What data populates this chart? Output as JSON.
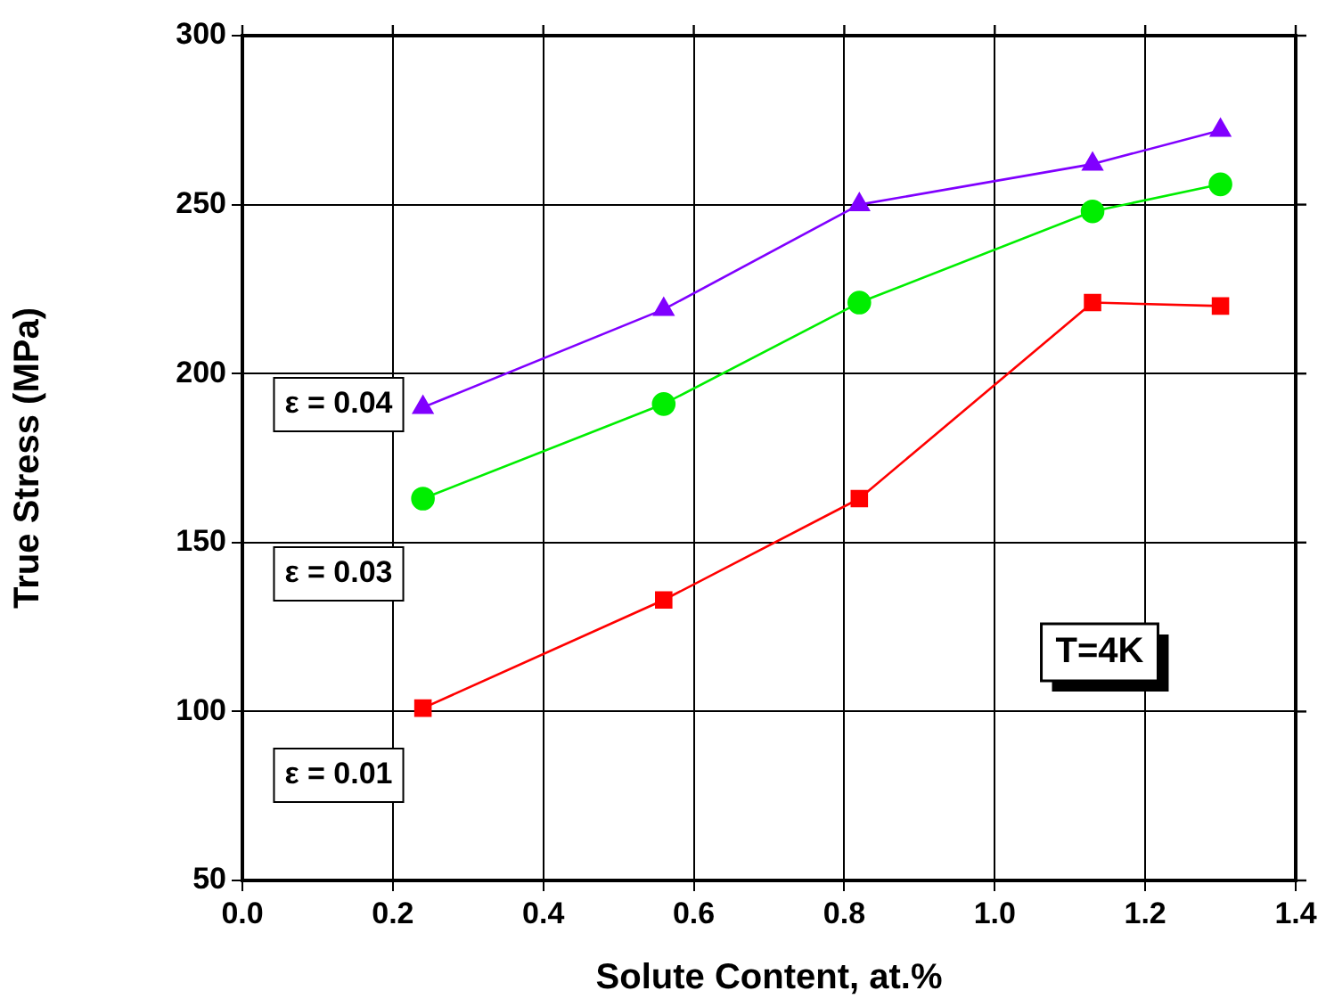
{
  "chart_data": {
    "type": "line",
    "xlabel": "Solute Content, at.%",
    "ylabel": "True Stress (MPa)",
    "x": [
      0.24,
      0.56,
      0.82,
      1.13,
      1.3
    ],
    "series": [
      {
        "color": "#8000ff",
        "marker": "triangle",
        "values": [
          190,
          219,
          250,
          262,
          272
        ]
      },
      {
        "color": "#00ee00",
        "marker": "circle",
        "values": [
          163,
          191,
          221,
          248,
          256
        ]
      },
      {
        "color": "#ff0000",
        "marker": "square",
        "values": [
          101,
          133,
          163,
          221,
          220
        ]
      }
    ],
    "xlim": [
      0,
      1.4
    ],
    "xticks": [
      {
        "value": 0,
        "label": "0.0"
      },
      {
        "value": 0.2,
        "label": "0.2"
      },
      {
        "value": 0.4,
        "label": "0.4"
      },
      {
        "value": 0.6,
        "label": "0.6"
      },
      {
        "value": 0.8,
        "label": "0.8"
      },
      {
        "value": 1,
        "label": "1.0"
      },
      {
        "value": 1.2,
        "label": "1.2"
      },
      {
        "value": 1.4,
        "label": "1.4"
      }
    ],
    "ylim": [
      50,
      300
    ],
    "yticks": [
      50,
      100,
      150,
      200,
      250,
      300
    ],
    "grid": true,
    "legend": false,
    "annotations": [
      "ε = 0.04",
      "ε = 0.03",
      "ε = 0.01",
      "T=4K"
    ]
  }
}
